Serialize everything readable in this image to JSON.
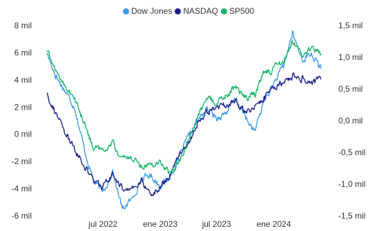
{
  "chart_data": {
    "type": "line",
    "title": "",
    "xlabel": "",
    "ylabel_left": "",
    "ylabel_right": "",
    "legend_position": "top",
    "grid": false,
    "x_ticks": [
      "jul 2022",
      "ene 2023",
      "jul 2023",
      "ene 2024"
    ],
    "x_tick_dates": [
      "2022-07-01",
      "2023-01-01",
      "2023-07-01",
      "2024-01-01"
    ],
    "x_range": [
      "2021-12-15",
      "2024-06-30"
    ],
    "y_left": {
      "ticks": [
        "8 mil",
        "6 mil",
        "4 mil",
        "2 mil",
        "0 mil",
        "-2 mil",
        "-4 mil",
        "-6 mil"
      ],
      "tick_values": [
        8000,
        6000,
        4000,
        2000,
        0,
        -2000,
        -4000,
        -6000
      ],
      "range": [
        -6000,
        8000
      ]
    },
    "y_right": {
      "ticks": [
        "1,5 mil",
        "1,0 mil",
        "0,5 mil",
        "0,0 mil",
        "-0,5 mil",
        "-1,0 mil",
        "-1,5 mil"
      ],
      "tick_values": [
        1500,
        1000,
        500,
        0,
        -500,
        -1000,
        -1500
      ],
      "range": [
        -1500,
        1500
      ]
    },
    "series": [
      {
        "name": "Dow Jones",
        "color": "#3d9be9",
        "axis": "left",
        "points": [
          [
            "2022-01-01",
            6000
          ],
          [
            "2022-02-01",
            4200
          ],
          [
            "2022-03-01",
            3200
          ],
          [
            "2022-04-01",
            2000
          ],
          [
            "2022-05-01",
            -1000
          ],
          [
            "2022-06-01",
            -3500
          ],
          [
            "2022-07-01",
            -4200
          ],
          [
            "2022-08-01",
            -2800
          ],
          [
            "2022-09-01",
            -5500
          ],
          [
            "2022-10-01",
            -4800
          ],
          [
            "2022-11-01",
            -3300
          ],
          [
            "2022-12-01",
            -3000
          ],
          [
            "2023-01-01",
            -3800
          ],
          [
            "2023-02-01",
            -3200
          ],
          [
            "2023-03-01",
            -1800
          ],
          [
            "2023-04-01",
            -200
          ],
          [
            "2023-05-01",
            1000
          ],
          [
            "2023-06-01",
            1900
          ],
          [
            "2023-07-01",
            1200
          ],
          [
            "2023-08-01",
            1600
          ],
          [
            "2023-09-01",
            2600
          ],
          [
            "2023-10-01",
            1300
          ],
          [
            "2023-11-01",
            200
          ],
          [
            "2023-12-01",
            2500
          ],
          [
            "2024-01-01",
            3700
          ],
          [
            "2024-02-01",
            5000
          ],
          [
            "2024-03-01",
            7400
          ],
          [
            "2024-04-01",
            5500
          ],
          [
            "2024-05-01",
            5900
          ],
          [
            "2024-06-01",
            4800
          ]
        ]
      },
      {
        "name": "NASDAQ",
        "color": "#1a1f8c",
        "axis": "right",
        "points": [
          [
            "2022-01-01",
            450
          ],
          [
            "2022-02-01",
            100
          ],
          [
            "2022-03-01",
            -200
          ],
          [
            "2022-04-01",
            -450
          ],
          [
            "2022-05-01",
            -700
          ],
          [
            "2022-06-01",
            -950
          ],
          [
            "2022-07-01",
            -1050
          ],
          [
            "2022-08-01",
            -850
          ],
          [
            "2022-09-01",
            -1050
          ],
          [
            "2022-10-01",
            -1100
          ],
          [
            "2022-11-01",
            -950
          ],
          [
            "2022-12-01",
            -1150
          ],
          [
            "2023-01-01",
            -1050
          ],
          [
            "2023-02-01",
            -850
          ],
          [
            "2023-03-01",
            -550
          ],
          [
            "2023-04-01",
            -350
          ],
          [
            "2023-05-01",
            -50
          ],
          [
            "2023-06-01",
            150
          ],
          [
            "2023-07-01",
            200
          ],
          [
            "2023-08-01",
            250
          ],
          [
            "2023-09-01",
            300
          ],
          [
            "2023-10-01",
            150
          ],
          [
            "2023-11-01",
            200
          ],
          [
            "2023-12-01",
            350
          ],
          [
            "2024-01-01",
            480
          ],
          [
            "2024-02-01",
            620
          ],
          [
            "2024-03-01",
            700
          ],
          [
            "2024-04-01",
            680
          ],
          [
            "2024-05-01",
            600
          ],
          [
            "2024-06-01",
            650
          ]
        ]
      },
      {
        "name": "SP500",
        "color": "#17b565",
        "axis": "left",
        "points": [
          [
            "2022-01-01",
            6200
          ],
          [
            "2022-02-01",
            4600
          ],
          [
            "2022-03-01",
            3600
          ],
          [
            "2022-04-01",
            2600
          ],
          [
            "2022-05-01",
            800
          ],
          [
            "2022-06-01",
            -1000
          ],
          [
            "2022-07-01",
            -1200
          ],
          [
            "2022-08-01",
            -600
          ],
          [
            "2022-09-01",
            -1800
          ],
          [
            "2022-10-01",
            -1700
          ],
          [
            "2022-11-01",
            -2300
          ],
          [
            "2022-12-01",
            -2200
          ],
          [
            "2023-01-01",
            -2000
          ],
          [
            "2023-02-01",
            -2900
          ],
          [
            "2023-03-01",
            -2100
          ],
          [
            "2023-04-01",
            -500
          ],
          [
            "2023-05-01",
            1300
          ],
          [
            "2023-06-01",
            2600
          ],
          [
            "2023-07-01",
            2300
          ],
          [
            "2023-08-01",
            2800
          ],
          [
            "2023-09-01",
            3600
          ],
          [
            "2023-10-01",
            2600
          ],
          [
            "2023-11-01",
            2900
          ],
          [
            "2023-12-01",
            4500
          ],
          [
            "2024-01-01",
            4800
          ],
          [
            "2024-02-01",
            5300
          ],
          [
            "2024-03-01",
            6900
          ],
          [
            "2024-04-01",
            5800
          ],
          [
            "2024-05-01",
            6300
          ],
          [
            "2024-06-01",
            5900
          ]
        ]
      }
    ]
  }
}
